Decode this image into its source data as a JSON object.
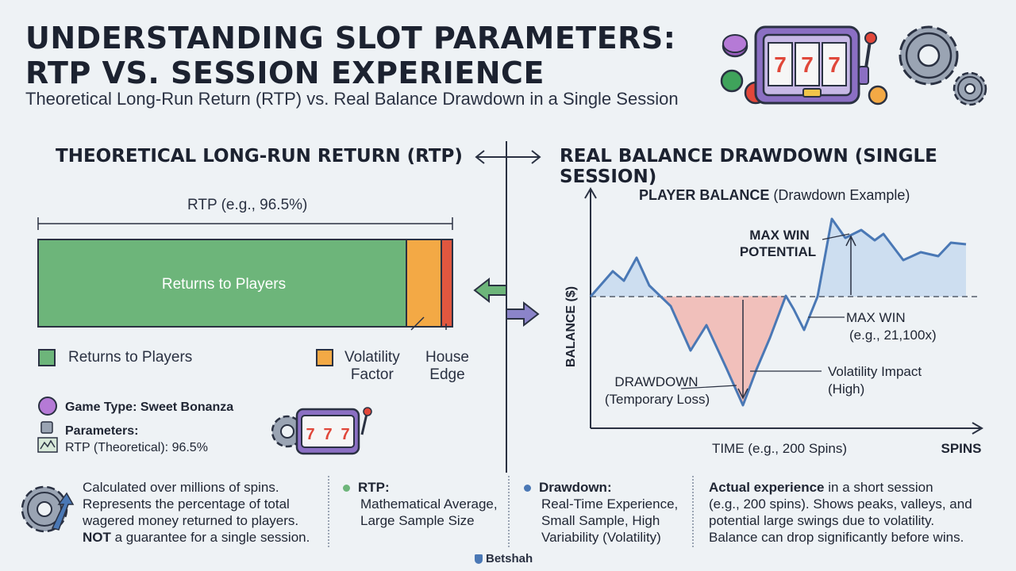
{
  "header": {
    "title_line1": "UNDERSTANDING SLOT PARAMETERS:",
    "title_line2": "RTP VS. SESSION EXPERIENCE",
    "subtitle": "Theoretical Long-Run Return (RTP) vs. Real Balance Drawdown in a Single Session"
  },
  "left_panel": {
    "title": "THEORETICAL LONG-RUN RETURN (RTP)",
    "rtp_bracket_label": "RTP (e.g., 96.5%)",
    "bar_main_label": "Returns to Players",
    "legend": {
      "returns": "Returns to Players",
      "volatility_line1": "Volatility",
      "volatility_line2": "Factor",
      "house_line1": "House",
      "house_line2": "Edge"
    },
    "game_type": "Game Type: Sweet Bonanza",
    "parameters_label": "Parameters:",
    "rtp_value": "RTP (Theoretical): 96.5%"
  },
  "right_panel": {
    "title": "REAL BALANCE DRAWDOWN (SINGLE SESSION)",
    "chart_title_bold": "PLAYER BALANCE",
    "chart_title_rest": " (Drawdown Example)",
    "y_axis_label": "BALANCE ($)",
    "x_axis_label": "TIME (e.g., 200 Spins)",
    "x_axis_end": "SPINS",
    "annotations": {
      "max_win_potential_1": "MAX WIN",
      "max_win_potential_2": "POTENTIAL",
      "max_win_1": "MAX WIN",
      "max_win_2": "(e.g., 21,100x)",
      "drawdown_1": "DRAWDOWN",
      "drawdown_2": "(Temporary Loss)",
      "volatility_1": "Volatility Impact",
      "volatility_2": "(High)"
    }
  },
  "footer": {
    "col1": [
      "Calculated over millions of spins.",
      "Represents the percentage of total",
      "wagered money returned to players."
    ],
    "col1_bold": "NOT",
    "col1_last": " a guarantee for a single session.",
    "col2_title": "RTP:",
    "col2": [
      "Mathematical Average,",
      "Large Sample Size"
    ],
    "col3_title": "Drawdown:",
    "col3": [
      "Real-Time Experience,",
      "Small Sample, High",
      "Variability (Volatility)"
    ],
    "col4_bold": "Actual experience",
    "col4_first_rest": " in a short session",
    "col4": [
      "(e.g., 200 spins). Shows peaks, valleys, and",
      "potential large swings due to volatility.",
      "Balance can drop significantly before wins."
    ],
    "brand": "Betshah"
  },
  "slot_reels": [
    "7",
    "7",
    "7"
  ],
  "colors": {
    "returns_green": "#6db57a",
    "volatility_orange": "#f3a945",
    "house_red": "#e0573f",
    "line_blue": "#4a78b5",
    "gain_fill": "#c9dcef",
    "loss_fill": "#f1b7b0"
  }
}
